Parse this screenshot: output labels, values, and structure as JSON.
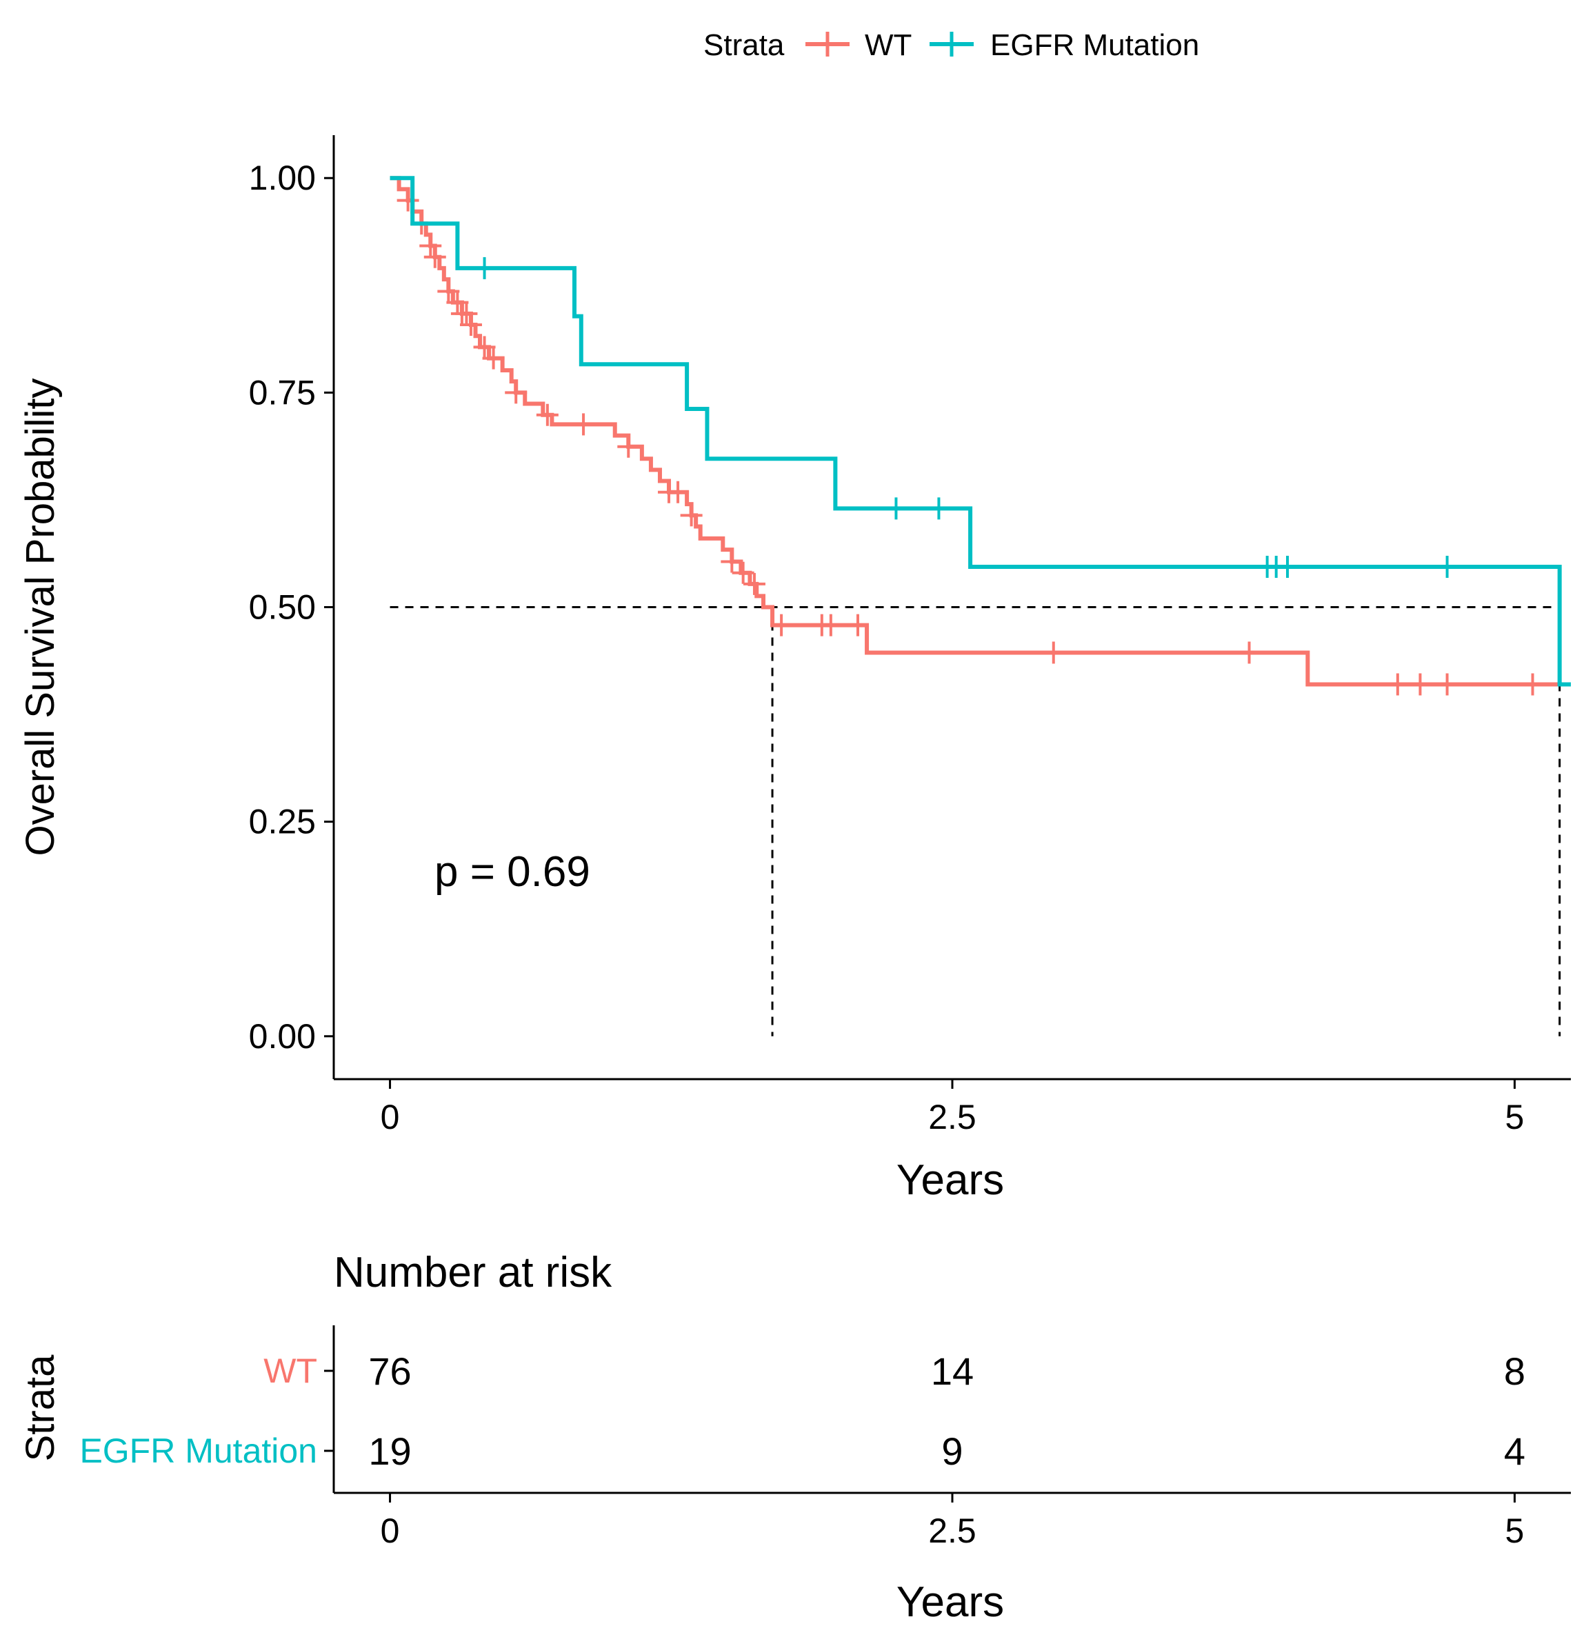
{
  "colors": {
    "wt": "#F8766D",
    "egfr": "#00BFC4",
    "axis": "#000000",
    "reference": "#000000"
  },
  "legend": {
    "title": "Strata",
    "items": [
      "WT",
      "EGFR Mutation"
    ]
  },
  "chart_data": {
    "type": "line",
    "subtype": "kaplan-meier-step",
    "title": "",
    "xlabel": "Years",
    "ylabel": "Overall Survival Probability",
    "xlim": [
      -0.25,
      5.25
    ],
    "ylim": [
      -0.05,
      1.05
    ],
    "x_ticks": [
      0,
      2.5,
      5
    ],
    "x_tick_labels": [
      "0",
      "2.5",
      "5"
    ],
    "y_ticks": [
      0,
      0.25,
      0.5,
      0.75,
      1.0
    ],
    "y_tick_labels": [
      "0.00",
      "0.25",
      "0.50",
      "0.75",
      "1.00"
    ],
    "grid": false,
    "legend_position": "top",
    "annotation": "p = 0.69",
    "median_reference": {
      "y": 0.5,
      "x_start": 0,
      "x_end": 5.2,
      "medians": [
        1.7,
        5.2
      ]
    },
    "series": [
      {
        "name": "WT",
        "color": "#F8766D",
        "steps": [
          [
            0,
            1.0
          ],
          [
            0.04,
            0.987
          ],
          [
            0.08,
            0.974
          ],
          [
            0.1,
            0.961
          ],
          [
            0.14,
            0.947
          ],
          [
            0.16,
            0.934
          ],
          [
            0.18,
            0.921
          ],
          [
            0.2,
            0.908
          ],
          [
            0.22,
            0.895
          ],
          [
            0.24,
            0.882
          ],
          [
            0.26,
            0.868
          ],
          [
            0.28,
            0.855
          ],
          [
            0.32,
            0.842
          ],
          [
            0.36,
            0.829
          ],
          [
            0.38,
            0.816
          ],
          [
            0.4,
            0.803
          ],
          [
            0.44,
            0.79
          ],
          [
            0.5,
            0.776
          ],
          [
            0.54,
            0.763
          ],
          [
            0.56,
            0.75
          ],
          [
            0.6,
            0.737
          ],
          [
            0.68,
            0.724
          ],
          [
            0.72,
            0.713
          ],
          [
            1.0,
            0.7
          ],
          [
            1.06,
            0.687
          ],
          [
            1.12,
            0.673
          ],
          [
            1.16,
            0.66
          ],
          [
            1.2,
            0.647
          ],
          [
            1.24,
            0.634
          ],
          [
            1.32,
            0.62
          ],
          [
            1.34,
            0.607
          ],
          [
            1.36,
            0.594
          ],
          [
            1.38,
            0.58
          ],
          [
            1.48,
            0.567
          ],
          [
            1.52,
            0.553
          ],
          [
            1.56,
            0.54
          ],
          [
            1.6,
            0.527
          ],
          [
            1.63,
            0.513
          ],
          [
            1.66,
            0.5
          ],
          [
            1.7,
            0.479
          ],
          [
            2.12,
            0.447
          ],
          [
            4.08,
            0.41
          ]
        ],
        "end_x": 5.2,
        "censors": [
          [
            0.08,
            0.974
          ],
          [
            0.14,
            0.947
          ],
          [
            0.18,
            0.921
          ],
          [
            0.2,
            0.908
          ],
          [
            0.26,
            0.868
          ],
          [
            0.3,
            0.855
          ],
          [
            0.32,
            0.842
          ],
          [
            0.34,
            0.842
          ],
          [
            0.36,
            0.829
          ],
          [
            0.42,
            0.803
          ],
          [
            0.46,
            0.79
          ],
          [
            0.56,
            0.75
          ],
          [
            0.7,
            0.724
          ],
          [
            0.86,
            0.713
          ],
          [
            1.06,
            0.687
          ],
          [
            1.24,
            0.634
          ],
          [
            1.28,
            0.634
          ],
          [
            1.34,
            0.607
          ],
          [
            1.52,
            0.553
          ],
          [
            1.57,
            0.54
          ],
          [
            1.62,
            0.527
          ],
          [
            1.74,
            0.479
          ],
          [
            1.92,
            0.479
          ],
          [
            1.96,
            0.479
          ],
          [
            2.08,
            0.479
          ],
          [
            2.95,
            0.447
          ],
          [
            3.82,
            0.447
          ],
          [
            4.48,
            0.41
          ],
          [
            4.58,
            0.41
          ],
          [
            4.7,
            0.41
          ],
          [
            5.08,
            0.41
          ]
        ]
      },
      {
        "name": "EGFR Mutation",
        "color": "#00BFC4",
        "steps": [
          [
            0,
            1.0
          ],
          [
            0.1,
            0.947
          ],
          [
            0.3,
            0.895
          ],
          [
            0.82,
            0.839
          ],
          [
            0.85,
            0.783
          ],
          [
            1.32,
            0.731
          ],
          [
            1.41,
            0.673
          ],
          [
            1.98,
            0.615
          ],
          [
            2.58,
            0.547
          ],
          [
            5.2,
            0.41
          ]
        ],
        "end_x": 5.25,
        "censors": [
          [
            0.42,
            0.895
          ],
          [
            2.25,
            0.615
          ],
          [
            2.44,
            0.615
          ],
          [
            3.9,
            0.547
          ],
          [
            3.94,
            0.547
          ],
          [
            3.99,
            0.547
          ],
          [
            4.7,
            0.547
          ]
        ]
      }
    ]
  },
  "risk_table": {
    "title": "Number at risk",
    "ylabel": "Strata",
    "xlabel": "Years",
    "x_ticks": [
      0,
      2.5,
      5
    ],
    "x_tick_labels": [
      "0",
      "2.5",
      "5"
    ],
    "rows": [
      {
        "name": "WT",
        "color": "#F8766D",
        "counts": [
          "76",
          "14",
          "8"
        ]
      },
      {
        "name": "EGFR Mutation",
        "color": "#00BFC4",
        "counts": [
          "19",
          "9",
          "4"
        ]
      }
    ]
  }
}
